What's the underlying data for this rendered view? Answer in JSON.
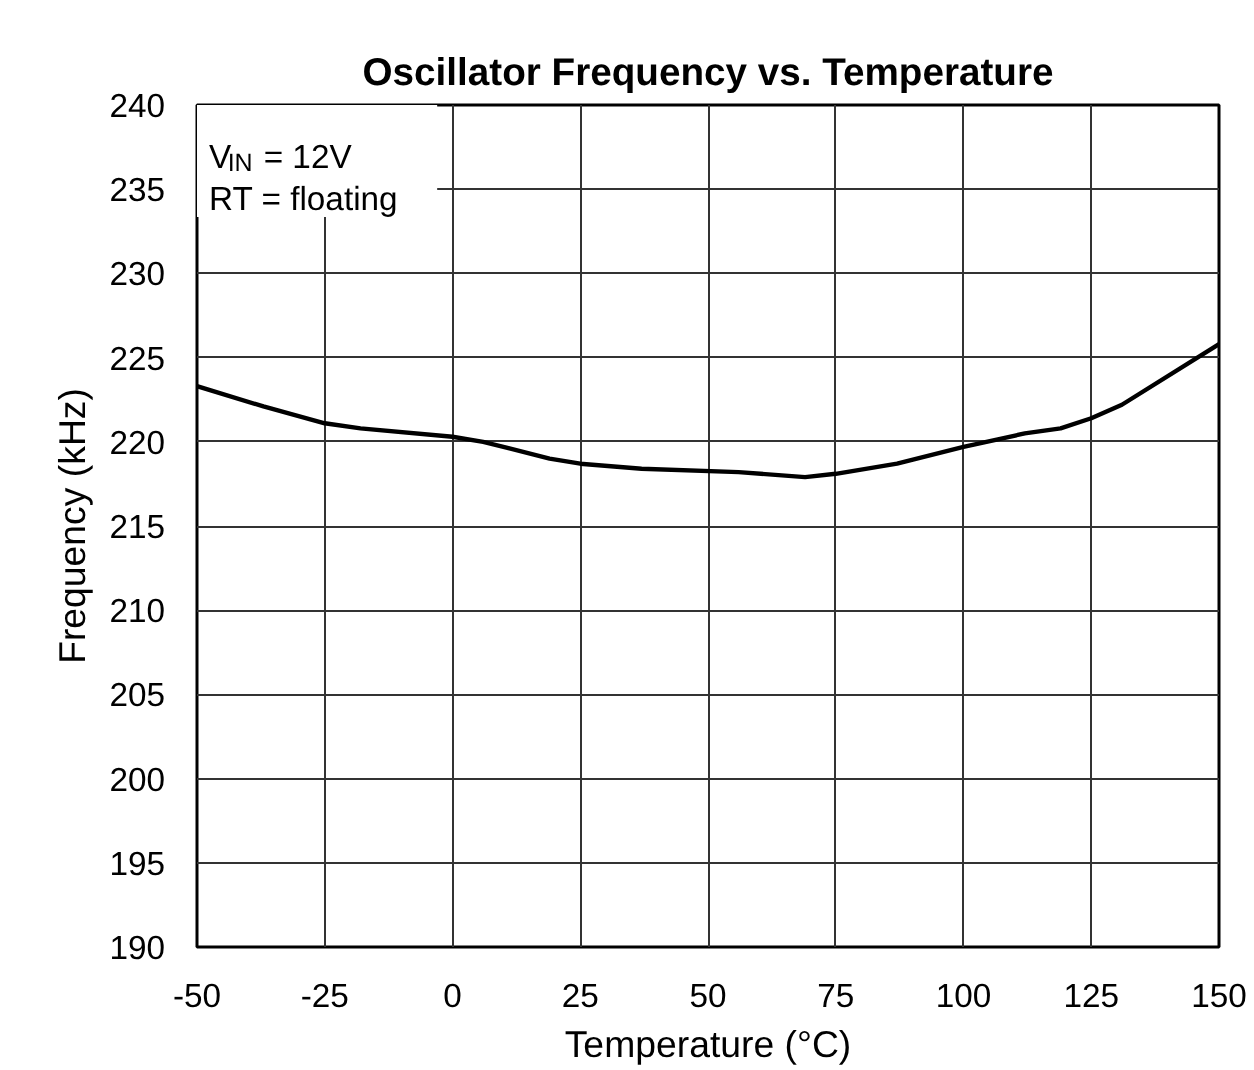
{
  "chart_data": {
    "type": "line",
    "title": "Oscillator Frequency vs. Temperature",
    "xlabel": "Temperature (°C)",
    "ylabel": "Frequency (kHz)",
    "x": [
      -50,
      -37,
      -25,
      -18,
      0,
      6,
      19,
      25,
      37,
      56,
      69,
      75,
      87,
      100,
      112,
      119,
      125,
      131,
      150
    ],
    "series": [
      {
        "color": "#000000",
        "values": [
          223.3,
          222.1,
          221.1,
          220.8,
          220.3,
          220.0,
          219.0,
          218.7,
          218.4,
          218.2,
          217.9,
          218.1,
          218.7,
          219.7,
          220.5,
          220.8,
          221.4,
          222.2,
          225.8
        ]
      }
    ],
    "xlim": [
      -50,
      150
    ],
    "xticks": [
      -50,
      -25,
      0,
      25,
      50,
      75,
      100,
      125,
      150
    ],
    "ylim": [
      190,
      240
    ],
    "yticks": [
      190,
      195,
      200,
      205,
      210,
      215,
      220,
      225,
      230,
      235,
      240
    ],
    "grid": true,
    "marker": "none",
    "line_style": "solid",
    "annotations": [
      "V$_{IN}$ = 12V",
      "RT = floating"
    ]
  }
}
